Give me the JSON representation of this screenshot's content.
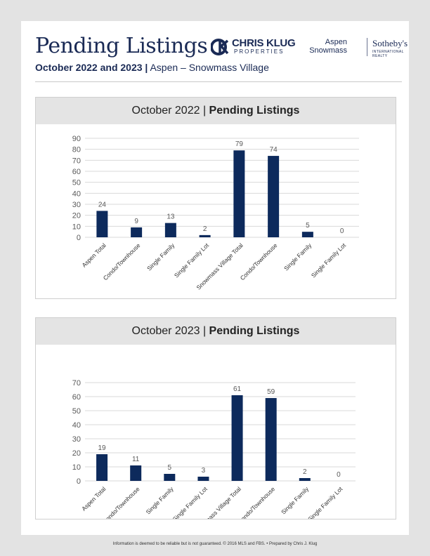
{
  "header": {
    "title": "Pending Listings",
    "subtitle_bold": "October 2022 and 2023 |",
    "subtitle_rest": " Aspen – Snowmass Village"
  },
  "brand": {
    "name": "CHRIS KLUG",
    "sub": "PROPERTIES",
    "aspen": "Aspen",
    "snowmass": "Snowmass",
    "sothebys": "Sotheby's",
    "realty": "INTERNATIONAL REALTY",
    "color": "#1a2a55"
  },
  "colors": {
    "bar": "#0d2a5c",
    "grid": "#d9d9d9",
    "text": "#595959"
  },
  "chart_data": [
    {
      "type": "bar",
      "title_regular": "October 2022 | ",
      "title_bold": "Pending Listings",
      "categories": [
        "Aspen Total",
        "Condo/Townhouse",
        "Single Family",
        "Single Family Lot",
        "Snowmass Village Total",
        "Condo/Townhouse",
        "Single Family",
        "Single Family Lot"
      ],
      "values": [
        24,
        9,
        13,
        2,
        79,
        74,
        5,
        0
      ],
      "ylim": [
        0,
        90
      ],
      "yticks": [
        0,
        10,
        20,
        30,
        40,
        50,
        60,
        70,
        80,
        90
      ],
      "grid": true
    },
    {
      "type": "bar",
      "title_regular": "October 2023 | ",
      "title_bold": "Pending Listings",
      "categories": [
        "Aspen Total",
        "Condo/Townhouse",
        "Single Family",
        "Single Family Lot",
        "Snowmass Village Total",
        "Condo/Townhouse",
        "Single Family",
        "Single Family Lot"
      ],
      "values": [
        19,
        11,
        5,
        3,
        61,
        59,
        2,
        0
      ],
      "ylim": [
        0,
        70
      ],
      "yticks": [
        0,
        10,
        20,
        30,
        40,
        50,
        60,
        70
      ],
      "grid": true
    }
  ],
  "footer": "Information is deemed to be reliable but is not guaranteed. © 2016 MLS and FBS. • Prepared by Chris J. Klug"
}
